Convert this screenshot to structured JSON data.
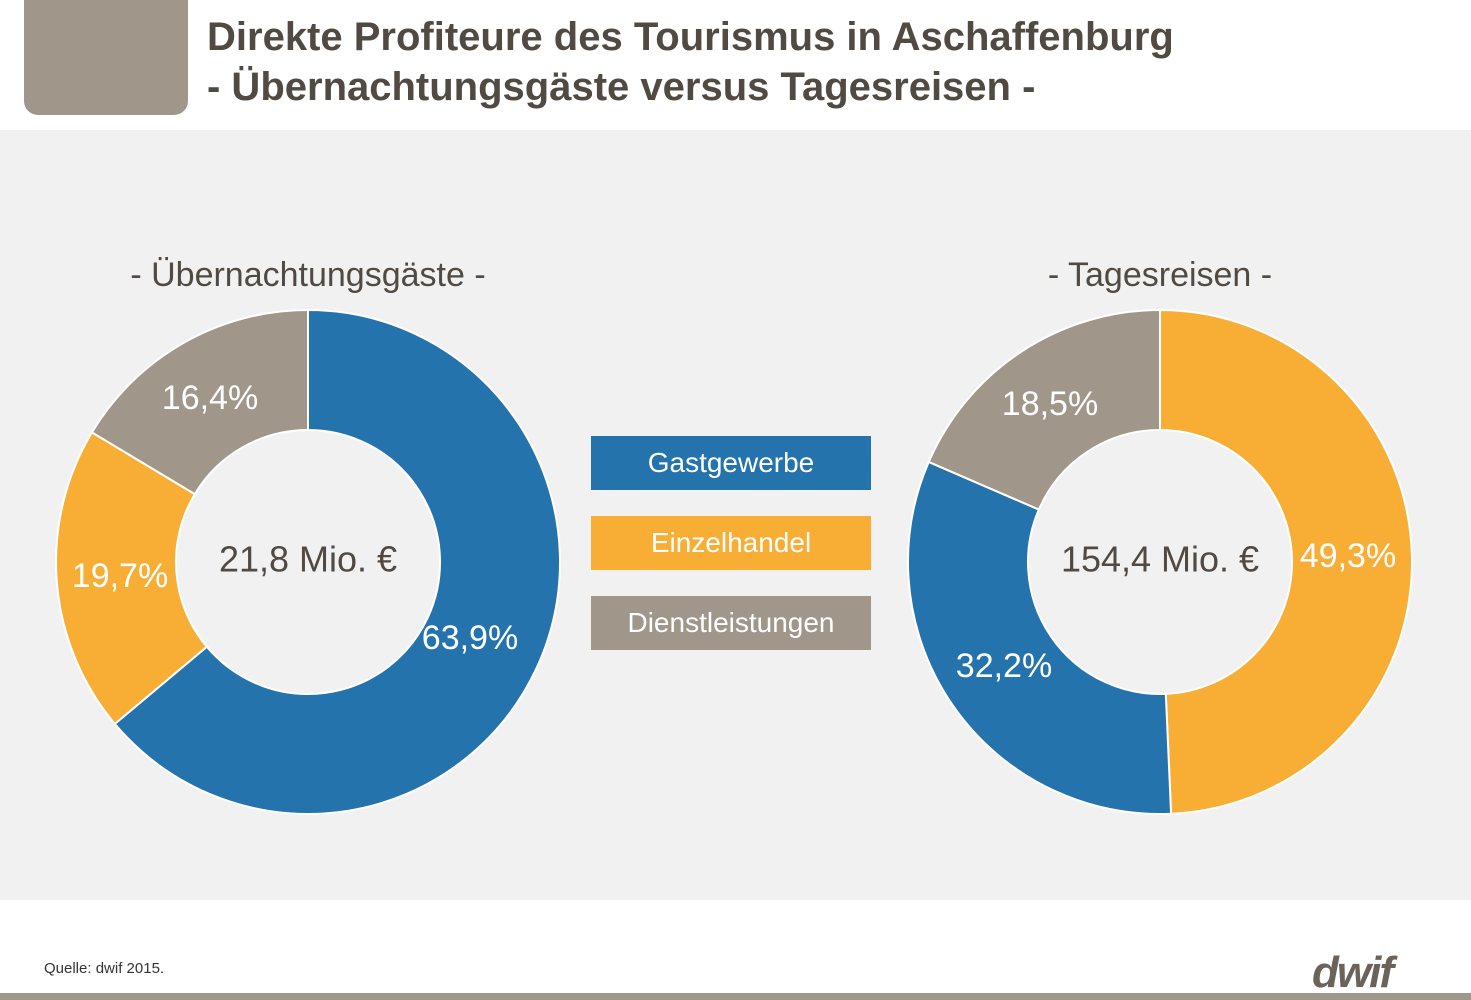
{
  "header": {
    "title_line1": "Direkte Profiteure des Tourismus in Aschaffenburg",
    "title_line2": "- Übernachtungsgäste versus Tagesreisen -"
  },
  "colors": {
    "Gastgewerbe": "#2573ad",
    "Einzelhandel": "#f8ae35",
    "Dienstleistungen": "#a0968a",
    "panel": "#f1f1f1",
    "text_dark": "#504a42"
  },
  "legend": [
    {
      "label": "Gastgewerbe",
      "color": "#2573ad"
    },
    {
      "label": "Einzelhandel",
      "color": "#f8ae35"
    },
    {
      "label": "Dienstleistungen",
      "color": "#a0968a"
    }
  ],
  "chart_data": [
    {
      "type": "pie",
      "variant": "donut",
      "title": "- Übernachtungsgäste -",
      "center_label": "21,8 Mio. €",
      "categories": [
        "Gastgewerbe",
        "Einzelhandel",
        "Dienstleistungen"
      ],
      "values": [
        63.9,
        19.7,
        16.4
      ],
      "labels": [
        "63,9%",
        "19,7%",
        "16,4%"
      ]
    },
    {
      "type": "pie",
      "variant": "donut",
      "title": "- Tagesreisen -",
      "center_label": "154,4 Mio. €",
      "categories": [
        "Einzelhandel",
        "Gastgewerbe",
        "Dienstleistungen"
      ],
      "values": [
        49.3,
        32.2,
        18.5
      ],
      "labels": [
        "49,3%",
        "32,2%",
        "18,5%"
      ]
    }
  ],
  "footer": {
    "source": "Quelle: dwif 2015.",
    "logo": "dwif"
  }
}
